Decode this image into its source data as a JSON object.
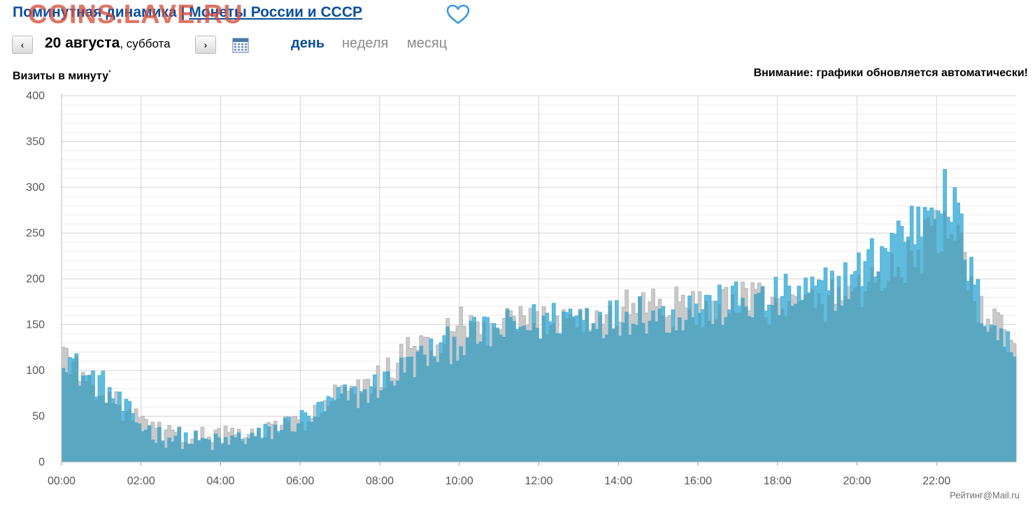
{
  "header": {
    "title_prefix": "Поминутная динамика | ",
    "title_link": "Монеты России и СССР",
    "watermark": "COINS.LAVE.RU",
    "favorite_icon": "heart-icon"
  },
  "date_nav": {
    "prev_label": "‹",
    "next_label": "›",
    "date": "20 августа",
    "weekday": ", суббота",
    "calendar_icon": "calendar-icon"
  },
  "period_tabs": [
    {
      "label": "день",
      "active": true
    },
    {
      "label": "неделя",
      "active": false
    },
    {
      "label": "месяц",
      "active": false
    }
  ],
  "notice": "Внимание: графики обновляется автоматически!",
  "credit": "Рейтинг@Mail.ru",
  "colors": {
    "today_fill": "#5fbcdf",
    "today_edge": "#4fb0d8",
    "prev_fill": "#c9c9c9",
    "overlap_fill": "#5aa7c1",
    "grid": "#d3d3d3",
    "title": "#0a4f9c"
  },
  "chart_data": {
    "type": "area",
    "title": "",
    "ylabel": "Визиты в минуту",
    "ylabel_mark": "*",
    "xlabel": "",
    "ylim": [
      0,
      400
    ],
    "xlim_hours": [
      0,
      24
    ],
    "yticks": [
      0,
      50,
      100,
      150,
      200,
      250,
      300,
      350,
      400
    ],
    "xticks": [
      "00:00",
      "02:00",
      "04:00",
      "06:00",
      "08:00",
      "10:00",
      "12:00",
      "14:00",
      "16:00",
      "18:00",
      "20:00",
      "22:00"
    ],
    "grid": true,
    "legend": "none",
    "series": [
      {
        "key": "current_day",
        "hour": [
          0,
          0.5,
          1,
          1.5,
          2,
          2.5,
          3,
          3.5,
          4,
          4.5,
          5,
          5.5,
          6,
          6.5,
          7,
          7.5,
          8,
          8.5,
          9,
          9.5,
          10,
          10.5,
          11,
          11.5,
          12,
          12.5,
          13,
          13.5,
          14,
          14.5,
          15,
          15.5,
          16,
          16.5,
          17,
          17.5,
          18,
          18.5,
          19,
          19.5,
          20,
          20.5,
          21,
          21.5,
          22,
          22.5,
          23,
          23.5,
          24
        ],
        "values": [
          125,
          95,
          85,
          60,
          40,
          28,
          26,
          22,
          20,
          26,
          28,
          38,
          45,
          55,
          70,
          72,
          85,
          98,
          112,
          122,
          132,
          138,
          142,
          148,
          152,
          158,
          162,
          160,
          156,
          168,
          158,
          162,
          172,
          168,
          175,
          172,
          178,
          182,
          185,
          192,
          205,
          225,
          250,
          260,
          300,
          270,
          180,
          145,
          115
        ]
      },
      {
        "key": "previous_day",
        "hour": [
          0,
          0.5,
          1,
          1.5,
          2,
          2.5,
          3,
          3.5,
          4,
          4.5,
          5,
          5.5,
          6,
          6.5,
          7,
          7.5,
          8,
          8.5,
          9,
          9.5,
          10,
          10.5,
          11,
          11.5,
          12,
          12.5,
          13,
          13.5,
          14,
          14.5,
          15,
          15.5,
          16,
          16.5,
          17,
          17.5,
          18,
          18.5,
          19,
          19.5,
          20,
          20.5,
          21,
          21.5,
          22,
          22.5,
          23,
          23.5,
          24
        ],
        "values": [
          128,
          92,
          80,
          58,
          44,
          32,
          29,
          28,
          30,
          28,
          30,
          40,
          42,
          58,
          75,
          76,
          92,
          110,
          130,
          128,
          150,
          142,
          145,
          150,
          152,
          160,
          158,
          155,
          160,
          178,
          172,
          168,
          170,
          165,
          172,
          178,
          170,
          168,
          175,
          180,
          190,
          200,
          210,
          225,
          255,
          240,
          175,
          150,
          125
        ]
      }
    ]
  }
}
